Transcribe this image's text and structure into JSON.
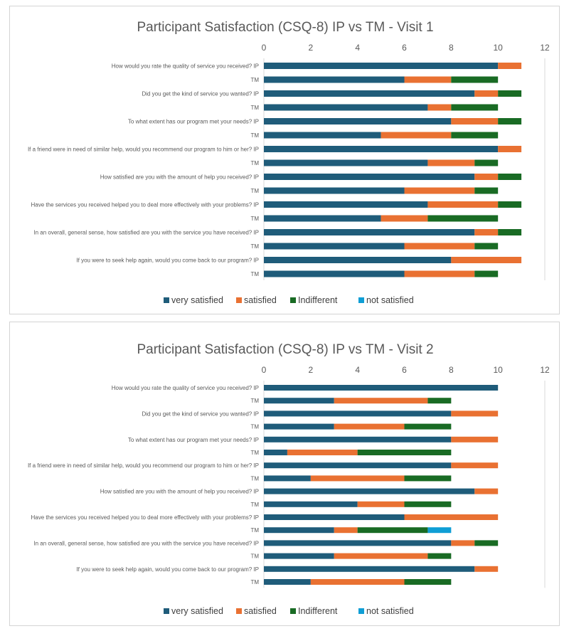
{
  "chart_data": [
    {
      "type": "bar",
      "orientation": "horizontal",
      "stacked": true,
      "title": "Participant Satisfaction (CSQ-8) IP vs TM - Visit 1",
      "xlim": [
        0,
        12
      ],
      "xticks": [
        "0",
        "2",
        "4",
        "6",
        "8",
        "10",
        "12"
      ],
      "xaxis_position": "top",
      "grid": false,
      "legend_position": "bottom",
      "categories": [
        "How would you rate the quality of service you received? IP",
        "TM",
        "Did you get the kind of service you wanted? IP",
        "TM",
        "To what extent has our program met your needs? IP",
        "TM",
        "If a friend were in need of similar help, would you recommend our program to him or her? IP",
        "TM",
        "How satisfied are you with the amount of help you received? IP",
        "TM",
        "Have the services you received helped you to deal more effectively with your problems? IP",
        "TM",
        "In an overall, general sense, how satisfied are you with the service you have received? IP",
        "TM",
        "If you were to seek help again, would you come back to our program? IP",
        "TM"
      ],
      "series": [
        {
          "name": "very satisfied",
          "color": "#1f5c7a",
          "values": [
            10,
            6,
            9,
            7,
            8,
            5,
            10,
            7,
            9,
            6,
            7,
            5,
            9,
            6,
            8,
            6
          ]
        },
        {
          "name": "satisfied",
          "color": "#e97132",
          "values": [
            1,
            2,
            1,
            1,
            2,
            3,
            1,
            2,
            1,
            3,
            3,
            2,
            1,
            3,
            3,
            3
          ]
        },
        {
          "name": "Indifferent",
          "color": "#196b24",
          "values": [
            0,
            2,
            1,
            2,
            1,
            2,
            0,
            1,
            1,
            1,
            1,
            3,
            1,
            1,
            0,
            1
          ]
        },
        {
          "name": "not satisfied",
          "color": "#0f9ed5",
          "values": [
            0,
            0,
            0,
            0,
            0,
            0,
            0,
            0,
            0,
            0,
            0,
            0,
            0,
            0,
            0,
            0
          ]
        }
      ]
    },
    {
      "type": "bar",
      "orientation": "horizontal",
      "stacked": true,
      "title": "Participant Satisfaction (CSQ-8) IP vs TM - Visit 2",
      "xlim": [
        0,
        12
      ],
      "xticks": [
        "0",
        "2",
        "4",
        "6",
        "8",
        "10",
        "12"
      ],
      "xaxis_position": "top",
      "grid": false,
      "legend_position": "bottom",
      "categories": [
        "How would you rate the quality of service you received? IP",
        "TM",
        "Did you get the kind of service you wanted? IP",
        "TM",
        "To what extent has our program met your needs? IP",
        "TM",
        "If a friend were in need of similar help, would you recommend our program to him or her? IP",
        "TM",
        "How satisfied are you with the amount of help you received? IP",
        "TM",
        "Have the services you received helped you to deal more effectively with your problems? IP",
        "TM",
        "In an overall, general sense, how satisfied are you with the service you have received? IP",
        "TM",
        "If you were to seek help again, would you come back to our program? IP",
        "TM"
      ],
      "series": [
        {
          "name": "very satisfied",
          "color": "#1f5c7a",
          "values": [
            10,
            3,
            8,
            3,
            8,
            1,
            8,
            2,
            9,
            4,
            6,
            3,
            8,
            3,
            9,
            2
          ]
        },
        {
          "name": "satisfied",
          "color": "#e97132",
          "values": [
            0,
            4,
            2,
            3,
            2,
            3,
            2,
            4,
            1,
            2,
            4,
            1,
            1,
            4,
            1,
            4
          ]
        },
        {
          "name": "Indifferent",
          "color": "#196b24",
          "values": [
            0,
            1,
            0,
            2,
            0,
            4,
            0,
            2,
            0,
            2,
            0,
            3,
            1,
            1,
            0,
            2
          ]
        },
        {
          "name": "not satisfied",
          "color": "#0f9ed5",
          "values": [
            0,
            0,
            0,
            0,
            0,
            0,
            0,
            0,
            0,
            0,
            0,
            1,
            0,
            0,
            0,
            0
          ]
        }
      ]
    }
  ]
}
